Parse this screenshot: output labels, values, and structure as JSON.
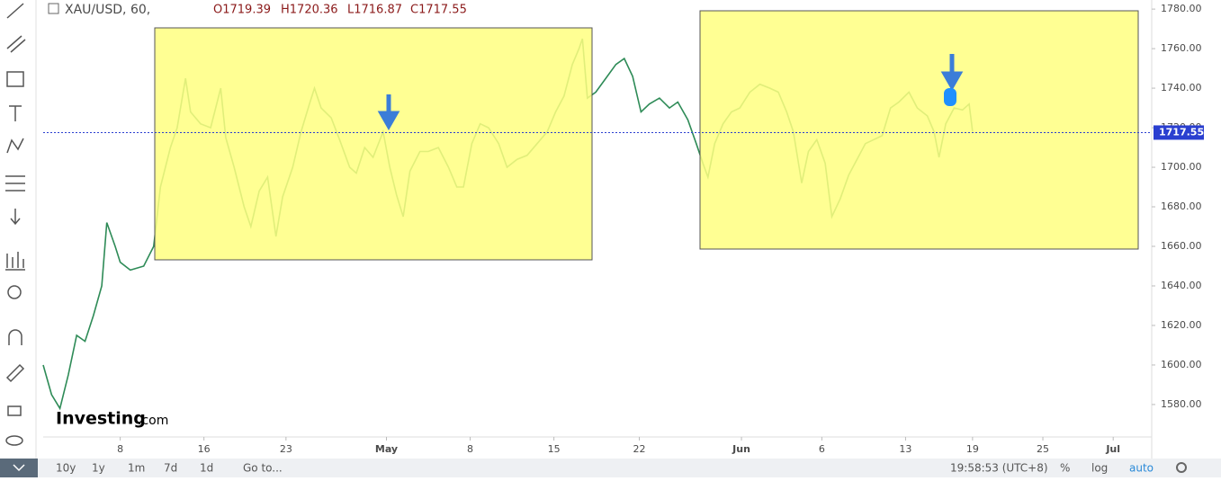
{
  "header": {
    "symbol": "XAU/USD, 60,",
    "open": "O1719.39",
    "high": "H1720.36",
    "low": "L1716.87",
    "close": "C1717.55"
  },
  "logo": {
    "brand": "Investing",
    "suffix": ".com"
  },
  "toolbar": {
    "ranges": [
      "10y",
      "1y",
      "1m",
      "7d",
      "1d"
    ],
    "goto": "Go to...",
    "time": "19:58:53 (UTC+8)",
    "options": [
      "%",
      "log",
      "auto"
    ]
  },
  "chart_data": {
    "type": "line",
    "color": "#2e8b57",
    "last_price": 1717.55,
    "x": [
      0,
      0.5,
      1,
      1.5,
      2,
      2.5,
      3,
      3.5,
      3.8,
      4.3,
      4.6,
      5.2,
      6,
      6.6,
      7,
      7.6,
      8,
      8.5,
      8.8,
      9.4,
      10,
      10.6,
      10.9,
      11.4,
      12,
      12.4,
      12.9,
      13.4,
      13.9,
      14.3,
      14.9,
      15.4,
      15.9,
      16.2,
      16.6,
      17.2,
      17.7,
      18.3,
      18.7,
      19.2,
      19.7,
      20.3,
      20.7,
      21.1,
      21.5,
      21.9,
      22.5,
      23,
      23.6,
      24.2,
      24.7,
      25.1,
      25.6,
      26.1,
      26.6,
      27.2,
      27.7,
      28.3,
      28.9,
      29.5,
      30.1,
      30.6,
      31.1,
      31.6,
      32,
      32.2,
      32.5,
      33,
      33.6,
      34.2,
      34.7,
      35.2,
      35.7,
      36.2,
      36.8,
      37.4,
      37.9,
      38.5,
      39,
      39.4,
      39.7,
      40.1,
      40.6,
      41.1,
      41.6,
      42.2,
      42.8,
      43.4,
      43.9,
      44.4,
      44.8,
      45.3,
      45.7,
      46.2,
      46.7,
      47.1,
      47.6,
      48.1,
      48.6,
      49.1,
      49.6,
      50.1,
      50.6,
      51.1,
      51.7,
      52.2,
      52.8,
      53.2,
      53.5,
      53.9,
      54.4,
      54.9,
      55.3,
      55.5
    ],
    "values": [
      1600,
      1585,
      1578,
      1595,
      1615,
      1612,
      1625,
      1640,
      1672,
      1660,
      1652,
      1648,
      1650,
      1660,
      1690,
      1710,
      1720,
      1745,
      1728,
      1722,
      1720,
      1740,
      1715,
      1700,
      1680,
      1670,
      1688,
      1695,
      1665,
      1685,
      1700,
      1718,
      1732,
      1740,
      1730,
      1725,
      1714,
      1700,
      1697,
      1710,
      1705,
      1718,
      1700,
      1686,
      1675,
      1698,
      1708,
      1708,
      1710,
      1700,
      1690,
      1690,
      1712,
      1722,
      1720,
      1712,
      1700,
      1704,
      1706,
      1712,
      1718,
      1728,
      1736,
      1752,
      1760,
      1765,
      1735,
      1738,
      1745,
      1752,
      1755,
      1746,
      1728,
      1732,
      1735,
      1730,
      1733,
      1724,
      1712,
      1702,
      1695,
      1712,
      1722,
      1728,
      1730,
      1738,
      1742,
      1740,
      1738,
      1728,
      1718,
      1692,
      1708,
      1714,
      1702,
      1675,
      1684,
      1696,
      1704,
      1712,
      1714,
      1716,
      1730,
      1733,
      1738,
      1730,
      1726,
      1718,
      1705,
      1722,
      1730,
      1729,
      1732,
      1718
    ],
    "xlim": [
      0,
      66.2
    ],
    "ylim": [
      1563.6,
      1784.6
    ],
    "xticks": [
      {
        "value": 4.6,
        "label": "8"
      },
      {
        "value": 9.6,
        "label": "16"
      },
      {
        "value": 14.5,
        "label": "23"
      },
      {
        "value": 20.5,
        "label": "May"
      },
      {
        "value": 25.5,
        "label": "8"
      },
      {
        "value": 30.5,
        "label": "15"
      },
      {
        "value": 35.6,
        "label": "22"
      },
      {
        "value": 41.7,
        "label": "Jun"
      },
      {
        "value": 46.5,
        "label": "6"
      },
      {
        "value": 51.5,
        "label": "13"
      },
      {
        "value": 55.5,
        "label": "19"
      },
      {
        "value": 59.7,
        "label": "25"
      },
      {
        "value": 63.9,
        "label": "Jul"
      }
    ],
    "yticks": [
      {
        "value": 1580,
        "label": "1580.00"
      },
      {
        "value": 1600,
        "label": "1600.00"
      },
      {
        "value": 1620,
        "label": "1620.00"
      },
      {
        "value": 1640,
        "label": "1640.00"
      },
      {
        "value": 1660,
        "label": "1660.00"
      },
      {
        "value": 1680,
        "label": "1680.00"
      },
      {
        "value": 1700,
        "label": "1700.00"
      },
      {
        "value": 1720,
        "label": "1720.00"
      },
      {
        "value": 1740,
        "label": "1740.00"
      },
      {
        "value": 1760,
        "label": "1760.00"
      },
      {
        "value": 1780,
        "label": "1780.00"
      }
    ]
  }
}
